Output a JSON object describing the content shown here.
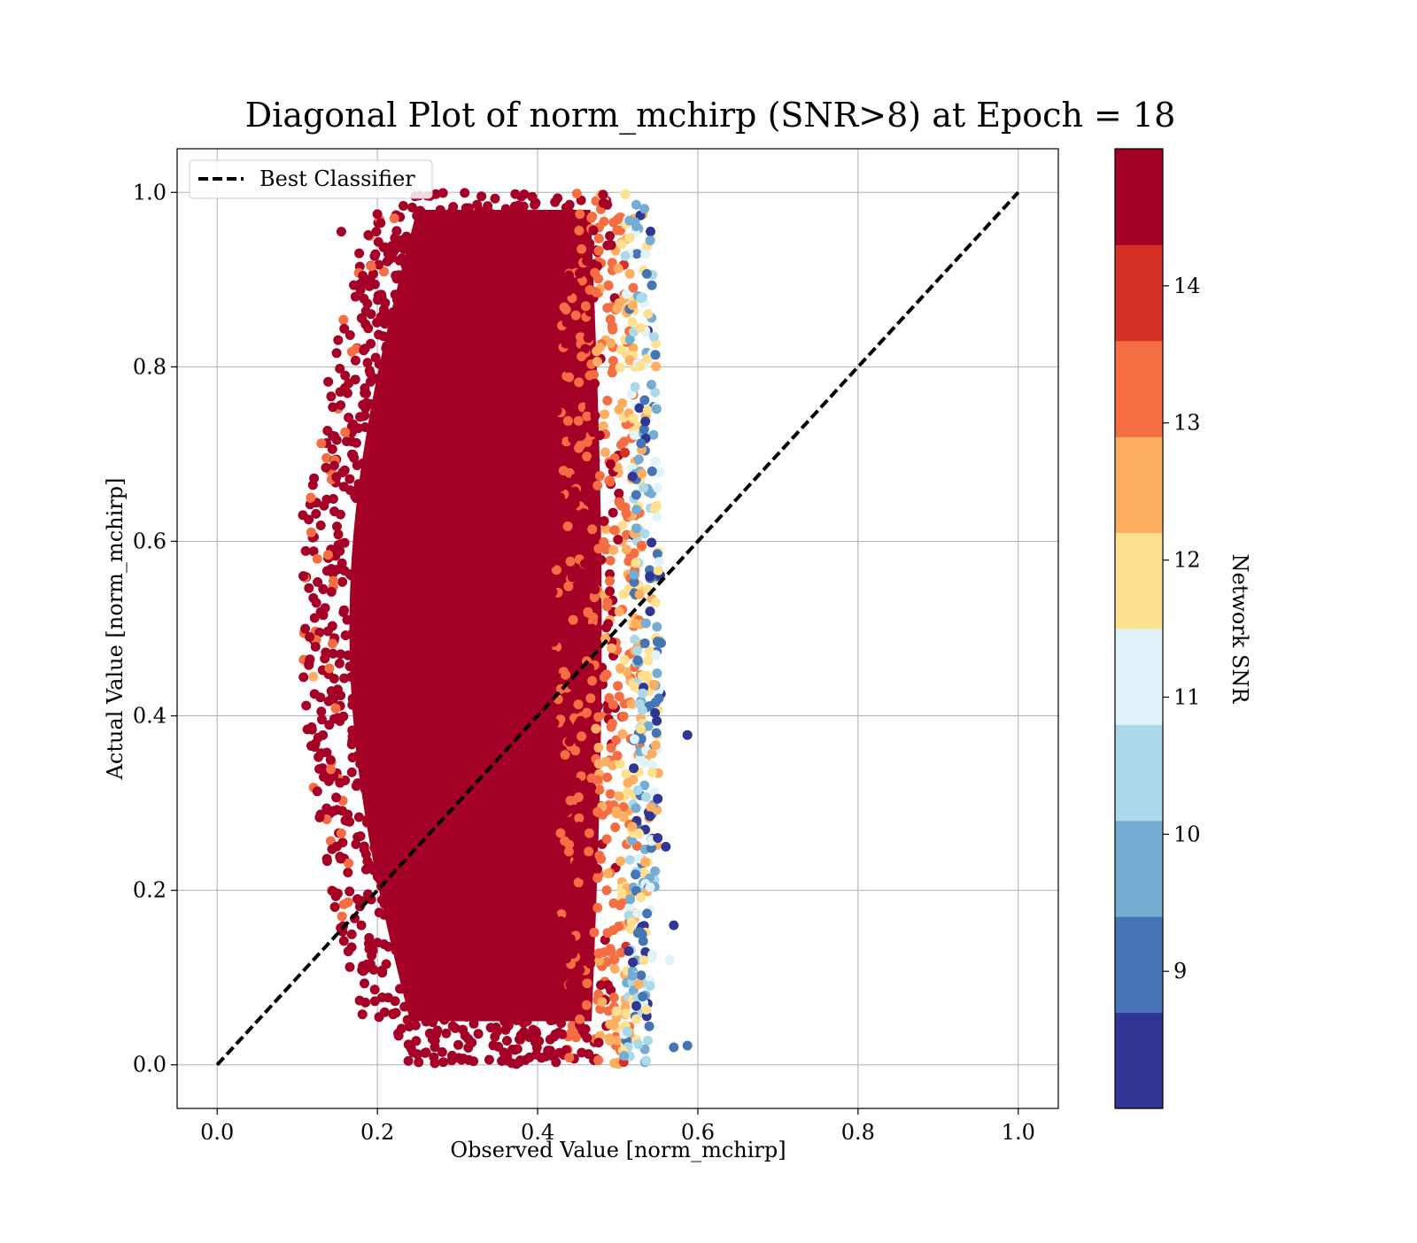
{
  "chart_data": {
    "type": "scatter",
    "title": "Diagonal Plot of norm_mchirp (SNR>8) at Epoch = 18",
    "xlabel": "Observed Value [norm_mchirp]",
    "ylabel": "Actual Value [norm_mchirp]",
    "xlim": [
      -0.05,
      1.05
    ],
    "ylim": [
      -0.05,
      1.05
    ],
    "xticks": [
      0.0,
      0.2,
      0.4,
      0.6,
      0.8,
      1.0
    ],
    "yticks": [
      0.0,
      0.2,
      0.4,
      0.6,
      0.8,
      1.0
    ],
    "xtick_labels": [
      "0.0",
      "0.2",
      "0.4",
      "0.6",
      "0.8",
      "1.0"
    ],
    "ytick_labels": [
      "0.0",
      "0.2",
      "0.4",
      "0.6",
      "0.8",
      "1.0"
    ],
    "grid": true,
    "legend": {
      "position": "top-left",
      "entries": [
        {
          "label": "Best Classifier",
          "style": "dashed",
          "color": "#000000"
        }
      ]
    },
    "reference_line": {
      "name": "Best Classifier",
      "x": [
        0.0,
        1.0
      ],
      "y": [
        0.0,
        1.0
      ]
    },
    "colorbar": {
      "label": "Network SNR",
      "range": [
        8,
        15
      ],
      "tick_values": [
        9,
        10,
        11,
        12,
        13,
        14
      ],
      "tick_labels": [
        "9",
        "10",
        "11",
        "12",
        "13",
        "14"
      ],
      "colors": [
        "#313695",
        "#4575b4",
        "#74add1",
        "#abd9e9",
        "#e0f3f8",
        "#fee090",
        "#fdae61",
        "#f46d43",
        "#d73027",
        "#a50026"
      ]
    },
    "scatter_summary": {
      "dense_region_x": [
        0.19,
        0.52
      ],
      "dense_region_y": [
        0.0,
        1.0
      ],
      "outlier_x_range": [
        0.11,
        0.59
      ],
      "dominant_color": "#a50026",
      "low_snr_edge_x": [
        0.5,
        0.56
      ]
    },
    "points": [
      {
        "x": 0.107,
        "y": 0.63,
        "snr": 14.6
      },
      {
        "x": 0.12,
        "y": 0.535,
        "snr": 14.6
      },
      {
        "x": 0.12,
        "y": 0.445,
        "snr": 12.5
      },
      {
        "x": 0.125,
        "y": 0.58,
        "snr": 13.4
      },
      {
        "x": 0.13,
        "y": 0.405,
        "snr": 14.6
      },
      {
        "x": 0.133,
        "y": 0.33,
        "snr": 14.6
      },
      {
        "x": 0.155,
        "y": 0.955,
        "snr": 14.6
      },
      {
        "x": 0.16,
        "y": 0.28,
        "snr": 14.6
      },
      {
        "x": 0.175,
        "y": 0.19,
        "snr": 14.6
      },
      {
        "x": 0.18,
        "y": 0.16,
        "snr": 14.6
      },
      {
        "x": 0.2,
        "y": 0.14,
        "snr": 14.6
      },
      {
        "x": 0.2,
        "y": 0.975,
        "snr": 14.6
      },
      {
        "x": 0.36,
        "y": 0.04,
        "snr": 14.6
      },
      {
        "x": 0.42,
        "y": 0.01,
        "snr": 14.6
      },
      {
        "x": 0.52,
        "y": 0.34,
        "snr": 8.5
      },
      {
        "x": 0.53,
        "y": 0.595,
        "snr": 13.4
      },
      {
        "x": 0.54,
        "y": 0.56,
        "snr": 8.5
      },
      {
        "x": 0.54,
        "y": 0.285,
        "snr": 8.5
      },
      {
        "x": 0.55,
        "y": 0.485,
        "snr": 9.2
      },
      {
        "x": 0.55,
        "y": 0.305,
        "snr": 8.5
      },
      {
        "x": 0.55,
        "y": 0.26,
        "snr": 8.5
      },
      {
        "x": 0.56,
        "y": 0.25,
        "snr": 8.5
      },
      {
        "x": 0.565,
        "y": 0.12,
        "snr": 11.2
      },
      {
        "x": 0.57,
        "y": 0.16,
        "snr": 8.5
      },
      {
        "x": 0.57,
        "y": 0.02,
        "snr": 9.2
      },
      {
        "x": 0.587,
        "y": 0.022,
        "snr": 9.2
      },
      {
        "x": 0.587,
        "y": 0.378,
        "snr": 8.5
      }
    ]
  }
}
